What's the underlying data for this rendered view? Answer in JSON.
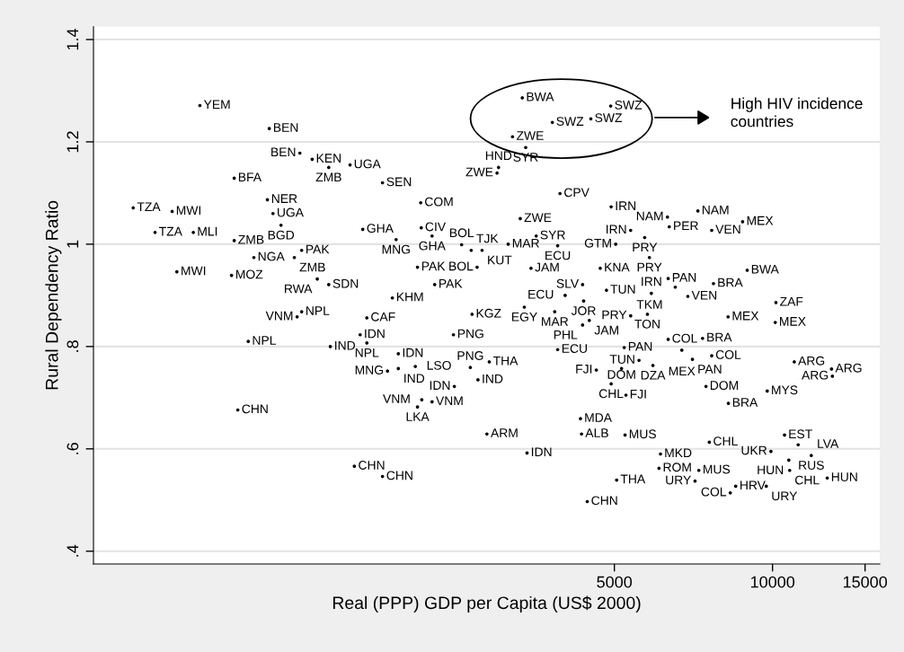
{
  "chart_data": {
    "type": "scatter",
    "xlabel": "Real (PPP) GDP per Capita (US$ 2000)",
    "ylabel": "Rural Dependency Ratio",
    "log": "x",
    "xlim": [
      510,
      16000
    ],
    "ylim": [
      0.375,
      1.425
    ],
    "xticks": [
      5000,
      10000,
      15000
    ],
    "yticks": [
      {
        "value": 0.4,
        "label": ".4"
      },
      {
        "value": 0.6,
        "label": ".6"
      },
      {
        "value": 0.8,
        "label": ".8"
      },
      {
        "value": 1,
        "label": "1"
      },
      {
        "value": 1.2,
        "label": "1.2"
      },
      {
        "value": 1.4,
        "label": "1.4"
      }
    ],
    "grid": "y",
    "marker": "circle",
    "color": "#000000",
    "annotations": [
      "High HIV incidence\ncountries"
    ],
    "x": [
      813,
      1102,
      1260,
      1330,
      1430,
      1570,
      945,
      1810,
      1093,
      2140,
      607,
      720,
      1120,
      1160,
      668,
      790,
      1660,
      2145,
      1921,
      2249,
      945,
      1270,
      1030,
      1230,
      735,
      934,
      1360,
      1430,
      2110,
      2275,
      1890,
      1270,
      1245,
      1690,
      2680,
      3340,
      4920,
      3810,
      4510,
      3200,
      3390,
      3010,
      2990,
      3940,
      4930,
      7210,
      6310,
      8770,
      3310,
      6360,
      7660,
      5370,
      5710,
      3550,
      2560,
      3140,
      3900,
      5030,
      2670,
      2800,
      3470,
      2740,
      5830,
      4700,
      8950,
      6330,
      7720,
      6530,
      5880,
      6900,
      4350,
      4830,
      4030,
      4370,
      10150,
      3370,
      3850,
      5370,
      5780,
      4480,
      4350,
      8230,
      10120,
      1005,
      1440,
      1641,
      1690,
      1940,
      1850,
      1940,
      2090,
      2470,
      960,
      2150,
      2249,
      2110,
      2480,
      1600,
      1810,
      3900,
      2890,
      2660,
      2750,
      5220,
      6330,
      7360,
      6720,
      7660,
      7040,
      5570,
      5920,
      4620,
      5160,
      4930,
      5260,
      11000,
      12950,
      13000,
      7470,
      9770,
      8240,
      4310,
      2860,
      4330,
      5240,
      7580,
      10540,
      11190,
      9930,
      11850,
      10740,
      10780,
      12710,
      3410,
      6120,
      6080,
      7240,
      5050,
      7120,
      8510,
      9730,
      8310,
      4440
    ],
    "values": [
      1.271,
      1.226,
      1.178,
      1.166,
      1.15,
      1.155,
      1.129,
      1.12,
      1.087,
      1.081,
      1.071,
      1.064,
      1.06,
      1.037,
      1.023,
      1.023,
      1.029,
      1.032,
      1.009,
      1.016,
      1.007,
      0.988,
      0.974,
      0.974,
      0.946,
      0.939,
      0.932,
      0.921,
      0.955,
      0.921,
      0.895,
      0.868,
      0.858,
      0.856,
      0.863,
      1.286,
      1.27,
      1.238,
      1.245,
      1.21,
      1.189,
      1.15,
      1.139,
      1.099,
      1.073,
      1.065,
      1.053,
      1.044,
      1.05,
      1.034,
      1.027,
      1.027,
      1.013,
      1.016,
      0.999,
      1.0,
      0.997,
      1.0,
      0.988,
      0.988,
      0.953,
      0.955,
      0.974,
      0.953,
      0.949,
      0.933,
      0.923,
      0.916,
      0.904,
      0.898,
      0.921,
      0.91,
      0.9,
      0.889,
      0.886,
      0.877,
      0.868,
      0.86,
      0.863,
      0.851,
      0.842,
      0.858,
      0.847,
      0.81,
      0.8,
      0.823,
      0.807,
      0.786,
      0.752,
      0.757,
      0.761,
      0.823,
      0.676,
      0.696,
      0.692,
      0.682,
      0.722,
      0.566,
      0.546,
      0.794,
      0.77,
      0.759,
      0.735,
      0.798,
      0.814,
      0.816,
      0.793,
      0.782,
      0.775,
      0.773,
      0.763,
      0.754,
      0.757,
      0.727,
      0.705,
      0.77,
      0.756,
      0.742,
      0.722,
      0.713,
      0.689,
      0.659,
      0.629,
      0.629,
      0.627,
      0.613,
      0.627,
      0.608,
      0.595,
      0.587,
      0.578,
      0.558,
      0.543,
      0.592,
      0.59,
      0.562,
      0.558,
      0.539,
      0.537,
      0.527,
      0.527,
      0.514,
      0.497
    ],
    "value_labels": [
      "YEM",
      "BEN",
      "BEN",
      "KEN",
      "ZMB",
      "UGA",
      "BFA",
      "SEN",
      "NER",
      "COM",
      "TZA",
      "MWI",
      "UGA",
      "BGD",
      "TZA",
      "MLI",
      "GHA",
      "CIV",
      "MNG",
      "GHA",
      "ZMB",
      "PAK",
      "NGA",
      "ZMB",
      "MWI",
      "MOZ",
      "RWA",
      "SDN",
      "PAK",
      "PAK",
      "KHM",
      "NPL",
      "VNM",
      "CAF",
      "KGZ",
      "BWA",
      "SWZ",
      "SWZ",
      "SWZ",
      "ZWE",
      "SYR",
      "HND",
      "ZWE",
      "CPV",
      "IRN",
      "NAM",
      "NAM",
      "MEX",
      "ZWE",
      "PER",
      "VEN",
      "IRN",
      "PRY",
      "SYR",
      "BOL",
      "MAR",
      "ECU",
      "GTM",
      "TJK",
      "KUT",
      "JAM",
      "BOL",
      "PRY",
      "KNA",
      "BWA",
      "PAN",
      "BRA",
      "TKM",
      "IRN",
      "VEN",
      "SLV",
      "TUN",
      "ECU",
      "JOR",
      "ZAF",
      "EGY",
      "MAR",
      "PRY",
      "TON",
      "JAM",
      "PHL",
      "MEX",
      "MEX",
      "NPL",
      "IND",
      "IDN",
      "NPL",
      "IDN",
      "MNG",
      "IND",
      "LSO",
      "PNG",
      "CHN",
      "VNM",
      "VNM",
      "LKA",
      "IDN",
      "CHN",
      "CHN",
      "ECU",
      "THA",
      "PNG",
      "IND",
      "PAN",
      "COL",
      "BRA",
      "MEX",
      "COL",
      "PAN",
      "TUN",
      "DZA",
      "FJI",
      "DOM",
      "CHL",
      "FJI",
      "ARG",
      "ARG",
      "ARG",
      "DOM",
      "MYS",
      "BRA",
      "MDA",
      "ARM",
      "ALB",
      "MUS",
      "CHL",
      "EST",
      "LVA",
      "UKR",
      "RUS",
      "HUN",
      "CHL",
      "HUN",
      "IDN",
      "MKD",
      "ROM",
      "MUS",
      "THA",
      "URY",
      "HRV",
      "URY",
      "COL",
      "CHN"
    ]
  }
}
